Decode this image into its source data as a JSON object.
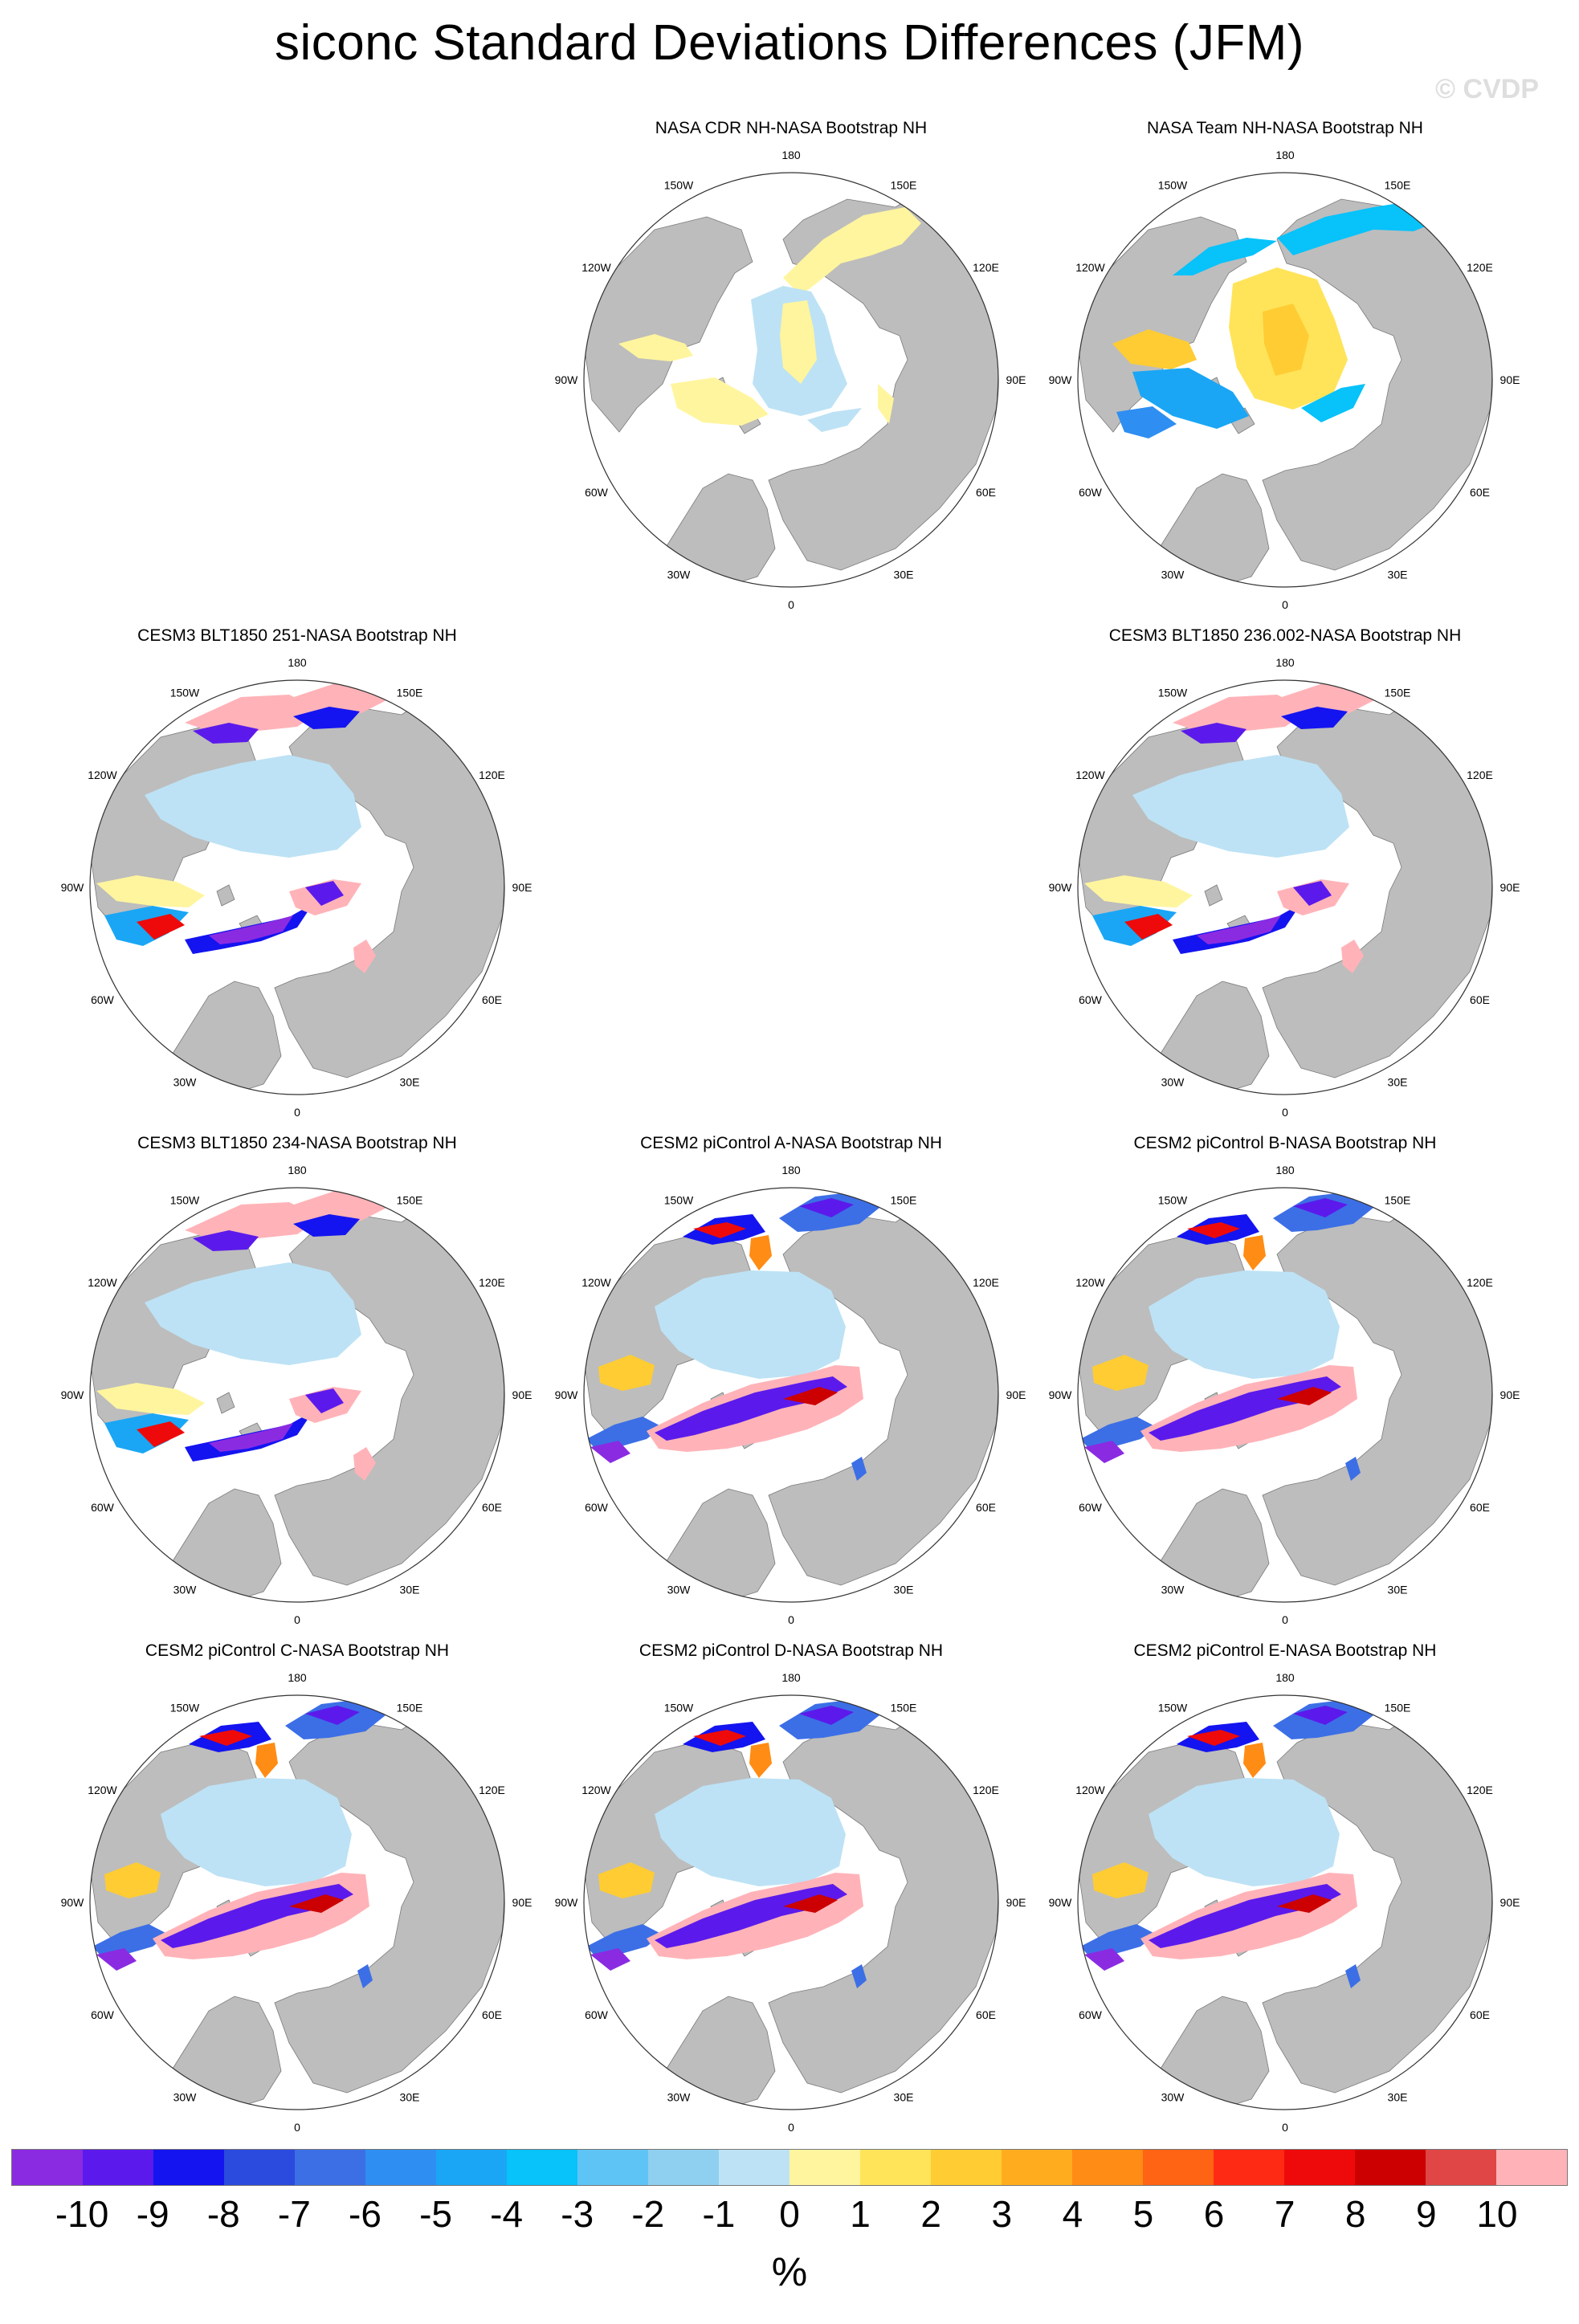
{
  "title": "siconc Standard Deviations Differences (JFM)",
  "watermark": "© CVDP",
  "longitude_labels": [
    "180",
    "150E",
    "120E",
    "90E",
    "60E",
    "30E",
    "0",
    "30W",
    "60W",
    "90W",
    "120W",
    "150W"
  ],
  "panels": [
    {
      "id": "p1",
      "title": "NASA CDR NH-NASA Bootstrap NH",
      "style": "obs_light"
    },
    {
      "id": "p2",
      "title": "NASA Team NH-NASA Bootstrap NH",
      "style": "obs_warm"
    },
    {
      "id": "p3",
      "title": "CESM3 BLT1850 251-NASA Bootstrap NH",
      "style": "model_a"
    },
    {
      "id": "p4",
      "title": "CESM3 BLT1850 236.002-NASA Bootstrap NH",
      "style": "model_a"
    },
    {
      "id": "p5",
      "title": "CESM3 BLT1850 234-NASA Bootstrap NH",
      "style": "model_a"
    },
    {
      "id": "p6",
      "title": "CESM2 piControl A-NASA Bootstrap NH",
      "style": "model_b"
    },
    {
      "id": "p7",
      "title": "CESM2 piControl B-NASA Bootstrap NH",
      "style": "model_b"
    },
    {
      "id": "p8",
      "title": "CESM2 piControl C-NASA Bootstrap NH",
      "style": "model_b"
    },
    {
      "id": "p9",
      "title": "CESM2 piControl D-NASA Bootstrap NH",
      "style": "model_b"
    },
    {
      "id": "p10",
      "title": "CESM2 piControl E-NASA Bootstrap NH",
      "style": "model_b"
    }
  ],
  "colorbar": {
    "colors": [
      "#8a2be2",
      "#5b1aeb",
      "#1414f0",
      "#2b4ade",
      "#3c6fe6",
      "#2e8ef2",
      "#1aa6f5",
      "#08c2fa",
      "#5ec4f5",
      "#8fcff0",
      "#bde2f5",
      "#fff59e",
      "#ffe45a",
      "#ffcc33",
      "#ffad1f",
      "#ff8c14",
      "#ff6314",
      "#ff2a14",
      "#ee0a0a",
      "#cc0000",
      "#e04646",
      "#ffb3b8"
    ],
    "tick_labels": [
      "-10",
      "-9",
      "-8",
      "-7",
      "-6",
      "-5",
      "-4",
      "-3",
      "-2",
      "-1",
      "0",
      "1",
      "2",
      "3",
      "4",
      "5",
      "6",
      "7",
      "8",
      "9",
      "10"
    ],
    "unit": "%"
  }
}
